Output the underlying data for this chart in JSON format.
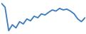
{
  "y_values": [
    85,
    75,
    15,
    30,
    22,
    38,
    32,
    45,
    40,
    52,
    48,
    58,
    55,
    62,
    68,
    65,
    72,
    68,
    70,
    65,
    58,
    45,
    38,
    48
  ],
  "line_color": "#3a7abf",
  "line_width": 1.3,
  "background_color": "#ffffff",
  "ylim": [
    10,
    90
  ],
  "xlim": [
    0,
    23
  ]
}
